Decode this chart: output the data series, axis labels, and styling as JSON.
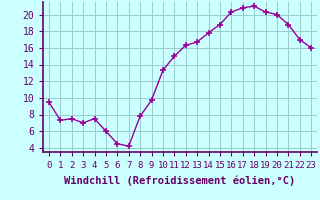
{
  "x": [
    0,
    1,
    2,
    3,
    4,
    5,
    6,
    7,
    8,
    9,
    10,
    11,
    12,
    13,
    14,
    15,
    16,
    17,
    18,
    19,
    20,
    21,
    22,
    23
  ],
  "y": [
    9.5,
    7.3,
    7.5,
    7.0,
    7.5,
    6.0,
    4.5,
    4.2,
    7.8,
    9.7,
    13.3,
    15.0,
    16.3,
    16.7,
    17.8,
    18.8,
    20.3,
    20.8,
    21.0,
    20.3,
    20.0,
    18.8,
    17.0,
    16.0
  ],
  "line_color": "#990099",
  "marker": "+",
  "marker_size": 4,
  "marker_lw": 1.2,
  "bg_color": "#ccffff",
  "grid_color": "#99cccc",
  "xlabel": "Windchill (Refroidissement éolien,°C)",
  "ylim": [
    3.5,
    21.5
  ],
  "xlim": [
    -0.5,
    23.5
  ],
  "yticks": [
    4,
    6,
    8,
    10,
    12,
    14,
    16,
    18,
    20
  ],
  "xtick_labels": [
    "0",
    "1",
    "2",
    "3",
    "4",
    "5",
    "6",
    "7",
    "8",
    "9",
    "10",
    "11",
    "12",
    "13",
    "14",
    "15",
    "16",
    "17",
    "18",
    "19",
    "20",
    "21",
    "22",
    "23"
  ],
  "tick_color": "#660066",
  "label_color": "#660066",
  "spine_color": "#660066",
  "axis_linewidth": 1.2,
  "font_size": 7.0,
  "xlabel_fontsize": 7.5
}
